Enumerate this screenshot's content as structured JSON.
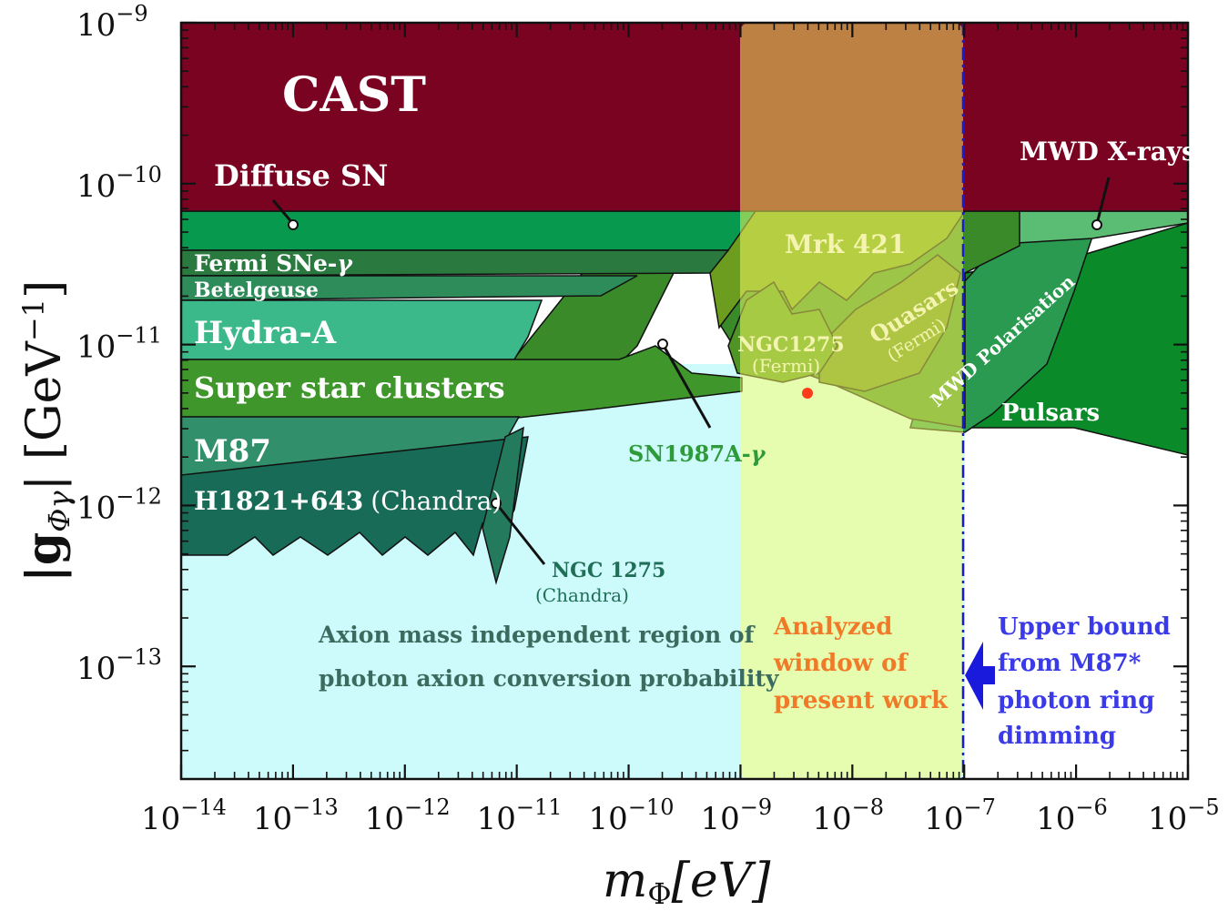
{
  "chart_data": {
    "type": "area",
    "title": "",
    "xlabel": "m",
    "xlabel_sub": "Φ",
    "xlabel_unit": "[eV]",
    "ylabel": "|g",
    "ylabel_sub": "Φγ",
    "ylabel_unit": "| [GeV",
    "ylabel_exp": "−1",
    "ylabel_close": "]",
    "xscale": "log",
    "yscale": "log",
    "xlim_log10": [
      -14,
      -5
    ],
    "ylim_log10": [
      -13.7,
      -9
    ],
    "x_ticks": [
      {
        "base": "10",
        "exp": "−14",
        "log": -14
      },
      {
        "base": "10",
        "exp": "−13",
        "log": -13
      },
      {
        "base": "10",
        "exp": "−12",
        "log": -12
      },
      {
        "base": "10",
        "exp": "−11",
        "log": -11
      },
      {
        "base": "10",
        "exp": "−10",
        "log": -10
      },
      {
        "base": "10",
        "exp": "−9",
        "log": -9
      },
      {
        "base": "10",
        "exp": "−8",
        "log": -8
      },
      {
        "base": "10",
        "exp": "−7",
        "log": -7
      },
      {
        "base": "10",
        "exp": "−6",
        "log": -6
      },
      {
        "base": "10",
        "exp": "−5",
        "log": -5
      }
    ],
    "y_ticks": [
      {
        "base": "10",
        "exp": "−9",
        "log": -9
      },
      {
        "base": "10",
        "exp": "−10",
        "log": -10
      },
      {
        "base": "10",
        "exp": "−11",
        "log": -11
      },
      {
        "base": "10",
        "exp": "−12",
        "log": -12
      },
      {
        "base": "10",
        "exp": "−13",
        "log": -13
      }
    ],
    "regions": [
      {
        "name": "CAST",
        "label": "CAST",
        "color": "#7b0322",
        "x_log": [
          -14,
          -5
        ],
        "top_log": -9,
        "bottom_log": -10.18
      },
      {
        "name": "Diffuse SN",
        "label": "Diffuse SN",
        "color": "#079a4e",
        "bound_log10": -10.18
      },
      {
        "name": "Fermi SNe-γ",
        "label": "Fermi SNe-",
        "label_greek": "γ",
        "color": "#2a7a40",
        "bound_log10": -10.42
      },
      {
        "name": "Betelgeuse",
        "label": "Betelgeuse",
        "color": "#2e8b5a",
        "bound_log10": -10.58
      },
      {
        "name": "Hydra-A",
        "label": "Hydra-A",
        "color": "#3cb98a",
        "bound_log10": -10.85
      },
      {
        "name": "Super star clusters",
        "label": "Super star clusters",
        "color": "#3f962b",
        "bound_log10": -11.09
      },
      {
        "name": "M87",
        "label": "M87",
        "color": "#31906b",
        "bound_log10": -11.44
      },
      {
        "name": "H1821+643",
        "label": "H1821+643",
        "label_suffix": "(Chandra)",
        "color": "#186b56",
        "bound_log10": -12.3
      },
      {
        "name": "NGC 1275 (Chandra)",
        "label": "NGC 1275",
        "label_suffix": "(Chandra)",
        "color": "#247a5c",
        "bound_log10": -12.45
      },
      {
        "name": "SN1987A-γ",
        "label": "SN1987A-",
        "label_greek": "γ",
        "color": "#34853a"
      },
      {
        "name": "Mrk 421",
        "label": "Mrk 421",
        "color": "#6c9d1f"
      },
      {
        "name": "NGC1275 (Fermi)",
        "label": "NGC1275",
        "label_suffix": "(Fermi)",
        "color": "#4f9424"
      },
      {
        "name": "Quasars (Fermi)",
        "label": "Quasars",
        "label_suffix": "(Fermi)",
        "color": "#5c8a22"
      },
      {
        "name": "MWD X-rays",
        "label": "MWD X-rays",
        "color": "#5bbd74",
        "bound_log10": -10.18
      },
      {
        "name": "MWD Polarisation",
        "label": "MWD Polarisation",
        "color": "#2a9a50"
      },
      {
        "name": "Pulsars",
        "label": "Pulsars",
        "color": "#0a8a28",
        "bound_log10": -11.5
      }
    ],
    "annotations": {
      "independent_region": [
        "Axion mass independent region of",
        "photon axion conversion probability"
      ],
      "analyzed_window": [
        "Analyzed",
        "window of",
        "present work"
      ],
      "analyzed_window_x_log": [
        -9,
        -7
      ],
      "upper_bound": [
        "Upper bound",
        "from M87*",
        "photon ring",
        "dimming"
      ],
      "upper_bound_x_log": -7,
      "point_log": [
        -8.4,
        -11.3
      ]
    },
    "colors": {
      "independent_region": "#cdfafa",
      "analyzed_window": "#ffff66",
      "analyzed_text": "#f07a28",
      "upper_bound": "#3a3ae8",
      "independent_text": "#3b6b5e",
      "point": "#ff3b1a"
    }
  }
}
